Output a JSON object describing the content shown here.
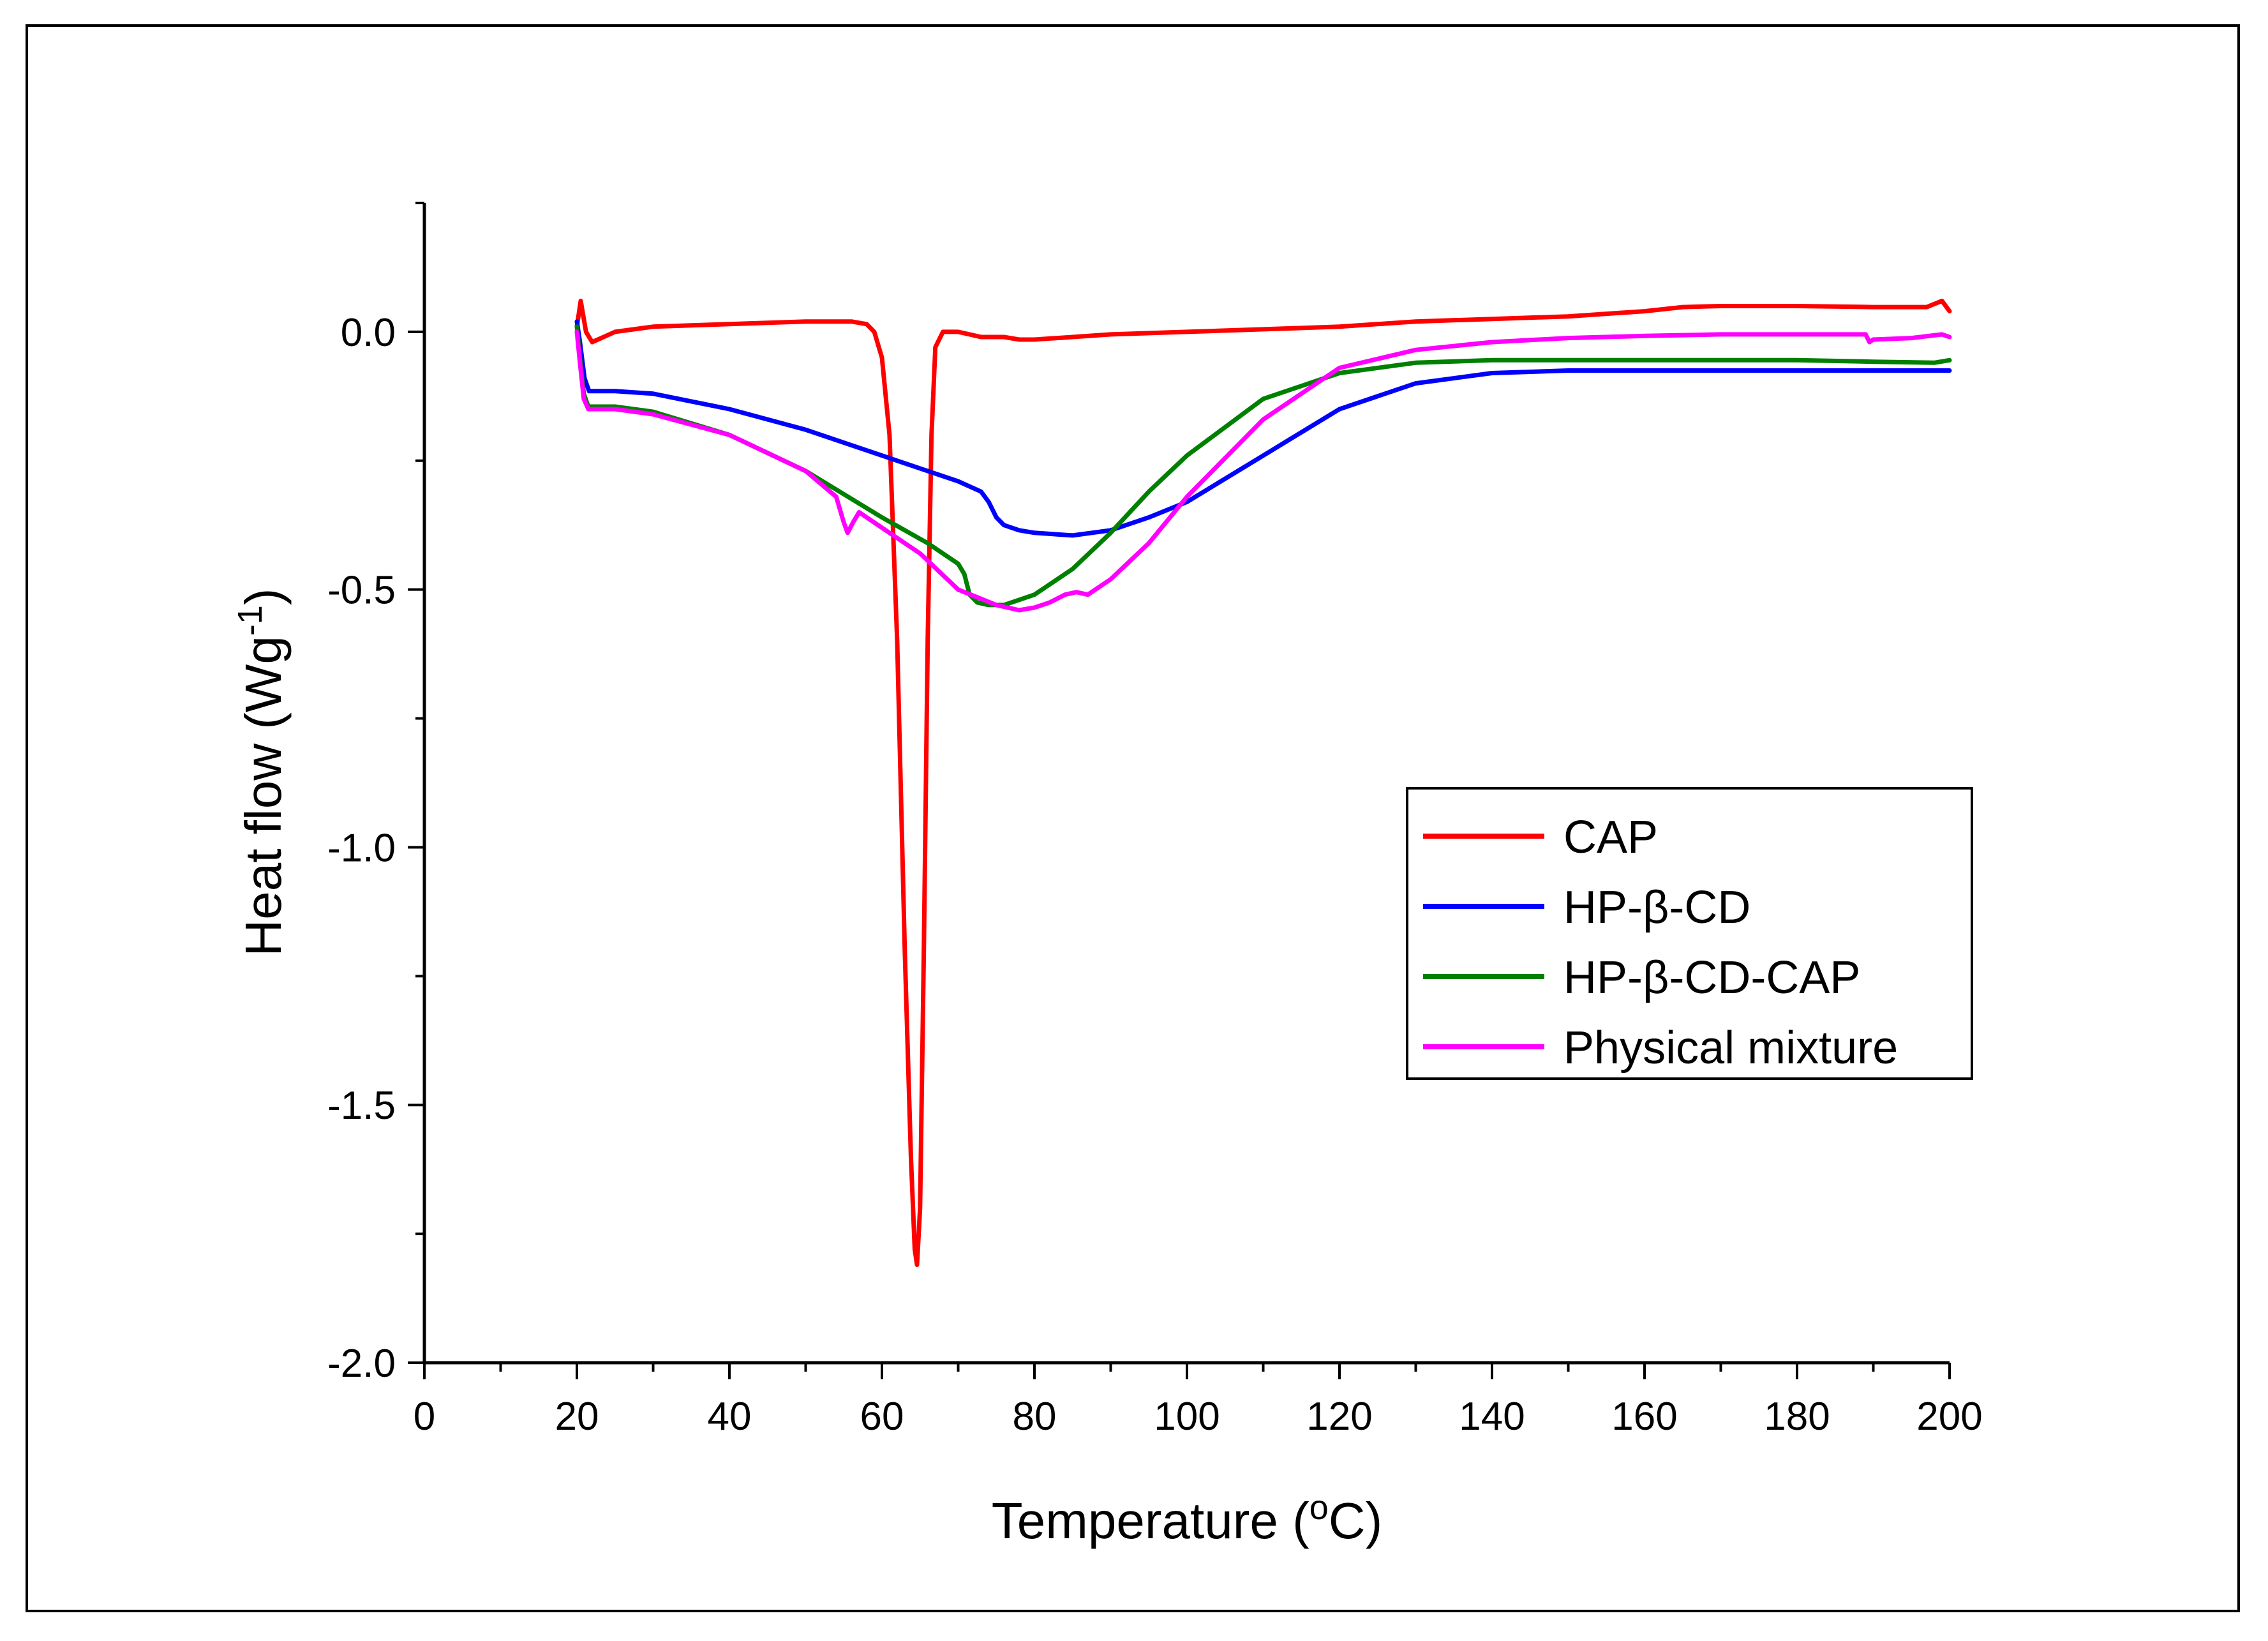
{
  "chart_data": {
    "type": "line",
    "title": "",
    "xlabel": "Temperature (",
    "xlabel_sup": "o",
    "xlabel_end": "C)",
    "ylabel": "Heat flow (Wg",
    "ylabel_sup": "-1",
    "ylabel_end": ")",
    "xlim": [
      0,
      200
    ],
    "ylim": [
      -2.0,
      0.25
    ],
    "x_ticks": [
      0,
      20,
      40,
      60,
      80,
      100,
      120,
      140,
      160,
      180,
      200
    ],
    "x_tick_labels": [
      "0",
      "20",
      "40",
      "60",
      "80",
      "100",
      "120",
      "140",
      "160",
      "180",
      "200"
    ],
    "y_ticks": [
      0.0,
      -0.5,
      -1.0,
      -1.5,
      -2.0
    ],
    "y_tick_labels": [
      "0.0",
      "-0.5",
      "-1.0",
      "-1.5",
      "-2.0"
    ],
    "grid": false,
    "legend_position": "right-center",
    "series": [
      {
        "name": "CAP",
        "color": "#ff0000",
        "x": [
          20.0,
          20.5,
          21.2,
          22.0,
          25,
          30,
          40,
          50,
          56,
          58,
          59,
          60,
          61,
          62,
          63,
          63.8,
          64.3,
          64.6,
          65.0,
          65.5,
          66.0,
          66.5,
          67.0,
          68.0,
          70,
          73,
          76,
          78,
          80,
          85,
          90,
          100,
          110,
          120,
          130,
          140,
          150,
          160,
          165,
          170,
          175,
          180,
          190,
          197,
          199,
          200
        ],
        "y": [
          0.01,
          0.06,
          0.0,
          -0.02,
          0.0,
          0.01,
          0.015,
          0.02,
          0.02,
          0.015,
          0.0,
          -0.05,
          -0.2,
          -0.6,
          -1.2,
          -1.6,
          -1.78,
          -1.81,
          -1.7,
          -1.2,
          -0.6,
          -0.2,
          -0.03,
          0.0,
          0.0,
          -0.01,
          -0.01,
          -0.015,
          -0.015,
          -0.01,
          -0.005,
          0.0,
          0.005,
          0.01,
          0.02,
          0.025,
          0.03,
          0.04,
          0.048,
          0.05,
          0.05,
          0.05,
          0.048,
          0.048,
          0.06,
          0.04
        ]
      },
      {
        "name": "HP-β-CD",
        "color": "#0000ff",
        "x": [
          20.0,
          20.4,
          21.0,
          21.6,
          22.5,
          25,
          30,
          40,
          50,
          60,
          70,
          73,
          74,
          75,
          76,
          78,
          80,
          85,
          90,
          95,
          100,
          110,
          120,
          130,
          140,
          150,
          160,
          170,
          180,
          190,
          198,
          200
        ],
        "y": [
          0.02,
          -0.02,
          -0.09,
          -0.115,
          -0.115,
          -0.115,
          -0.12,
          -0.15,
          -0.19,
          -0.24,
          -0.29,
          -0.31,
          -0.33,
          -0.36,
          -0.375,
          -0.385,
          -0.39,
          -0.395,
          -0.385,
          -0.36,
          -0.33,
          -0.24,
          -0.15,
          -0.1,
          -0.08,
          -0.075,
          -0.075,
          -0.075,
          -0.075,
          -0.075,
          -0.075,
          -0.075
        ]
      },
      {
        "name": "HP-β-CD-CAP",
        "color": "#008000",
        "x": [
          20.0,
          20.4,
          20.9,
          21.5,
          22.5,
          25,
          30,
          40,
          50,
          60,
          66,
          70,
          70.8,
          71.5,
          72.5,
          74,
          76,
          80,
          85,
          90,
          95,
          100,
          110,
          120,
          130,
          140,
          150,
          160,
          170,
          180,
          190,
          198,
          200
        ],
        "y": [
          0.01,
          -0.05,
          -0.12,
          -0.145,
          -0.145,
          -0.145,
          -0.155,
          -0.2,
          -0.27,
          -0.36,
          -0.41,
          -0.45,
          -0.47,
          -0.51,
          -0.525,
          -0.53,
          -0.53,
          -0.51,
          -0.46,
          -0.39,
          -0.31,
          -0.24,
          -0.13,
          -0.08,
          -0.06,
          -0.055,
          -0.055,
          -0.055,
          -0.055,
          -0.055,
          -0.058,
          -0.06,
          -0.055
        ]
      },
      {
        "name": "Physical mixture",
        "color": "#ff00ff",
        "x": [
          20.0,
          20.4,
          20.9,
          21.5,
          22.5,
          25,
          30,
          40,
          50,
          54,
          55,
          55.5,
          56.2,
          57,
          58,
          60,
          65,
          70,
          75,
          78,
          80,
          82,
          84,
          85.5,
          87,
          90,
          95,
          100,
          110,
          120,
          130,
          140,
          150,
          160,
          170,
          180,
          189,
          189.5,
          190,
          195,
          199,
          200
        ],
        "y": [
          0.0,
          -0.06,
          -0.13,
          -0.15,
          -0.15,
          -0.15,
          -0.16,
          -0.2,
          -0.27,
          -0.32,
          -0.37,
          -0.39,
          -0.37,
          -0.35,
          -0.36,
          -0.38,
          -0.43,
          -0.5,
          -0.53,
          -0.54,
          -0.535,
          -0.525,
          -0.51,
          -0.505,
          -0.51,
          -0.48,
          -0.41,
          -0.32,
          -0.17,
          -0.07,
          -0.035,
          -0.02,
          -0.012,
          -0.008,
          -0.005,
          -0.005,
          -0.005,
          -0.02,
          -0.015,
          -0.012,
          -0.005,
          -0.01
        ]
      }
    ]
  }
}
